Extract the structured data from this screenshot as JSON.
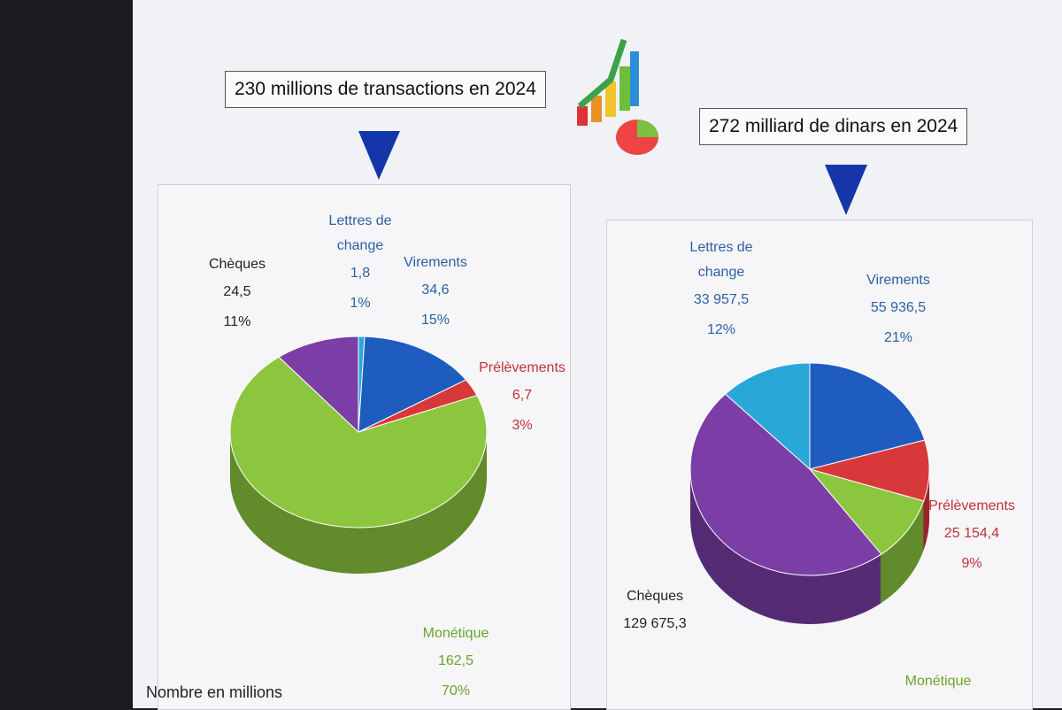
{
  "chart_data": [
    {
      "type": "pie",
      "title": "230 millions de transactions en 2024",
      "note": "Nombre en millions",
      "categories": [
        "Lettres de change",
        "Virements",
        "Prélèvements",
        "Monétique",
        "Chèques"
      ],
      "values": [
        1.8,
        34.6,
        6.7,
        162.5,
        24.5
      ],
      "value_labels": [
        "1,8",
        "34,6",
        "6,7",
        "162,5",
        "24,5"
      ],
      "shares": [
        1,
        15,
        3,
        70,
        11
      ],
      "share_labels": [
        "1%",
        "15%",
        "3%",
        "70%",
        "11%"
      ],
      "colors": [
        "#29a8d8",
        "#1f5cc0",
        "#d8383a",
        "#8cc63e",
        "#7a3ea6"
      ],
      "label_colors": [
        "#2c5fa6",
        "#2c5fa6",
        "#c0303a",
        "#6aa32a",
        "#222222"
      ]
    },
    {
      "type": "pie",
      "title": "272 milliard de dinars en 2024",
      "categories": [
        "Lettres de change",
        "Virements",
        "Prélèvements",
        "Monétique",
        "Chèques"
      ],
      "values": [
        33957.5,
        55936.5,
        25154.4,
        27000,
        129675.3
      ],
      "value_labels": [
        "33 957,5",
        "55 936,5",
        "25 154,4",
        null,
        "129 675,3"
      ],
      "shares": [
        12,
        21,
        9,
        null,
        null
      ],
      "share_labels": [
        "12%",
        "21%",
        "9%",
        null,
        null
      ],
      "colors": [
        "#29a8d8",
        "#1f5cc0",
        "#d8383a",
        "#8cc63e",
        "#7a3ea6"
      ],
      "label_colors": [
        "#2c5fa6",
        "#2c5fa6",
        "#c0303a",
        "#6aa32a",
        "#222222"
      ]
    }
  ]
}
